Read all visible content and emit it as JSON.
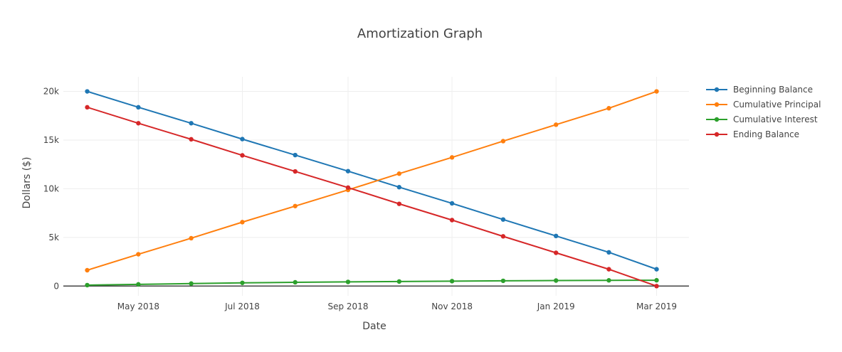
{
  "chart_data": {
    "type": "line",
    "title": "Amortization Graph",
    "xlabel": "Date",
    "ylabel": "Dollars ($)",
    "x": [
      "2018-04-01",
      "2018-05-01",
      "2018-06-01",
      "2018-07-01",
      "2018-08-01",
      "2018-09-01",
      "2018-10-01",
      "2018-11-01",
      "2018-12-01",
      "2019-01-01",
      "2019-02-01",
      "2019-03-01"
    ],
    "xlim": [
      "2018-03-18",
      "2019-03-20"
    ],
    "ylim": [
      -1000,
      21500
    ],
    "x_ticks": [
      {
        "date": "2018-05-01",
        "label": "May 2018"
      },
      {
        "date": "2018-07-01",
        "label": "Jul 2018"
      },
      {
        "date": "2018-09-01",
        "label": "Sep 2018"
      },
      {
        "date": "2018-11-01",
        "label": "Nov 2018"
      },
      {
        "date": "2019-01-01",
        "label": "Jan 2019"
      },
      {
        "date": "2019-03-01",
        "label": "Mar 2019"
      }
    ],
    "y_ticks": [
      {
        "value": 0,
        "label": "0"
      },
      {
        "value": 5000,
        "label": "5k"
      },
      {
        "value": 10000,
        "label": "10k"
      },
      {
        "value": 15000,
        "label": "15k"
      },
      {
        "value": 20000,
        "label": "20k"
      }
    ],
    "grid": true,
    "legend_position": "top-right",
    "series": [
      {
        "name": "Beginning Balance",
        "color": "#1f77b4",
        "values": [
          20000,
          18370,
          16730,
          15100,
          13460,
          11810,
          10160,
          8500,
          6840,
          5150,
          3470,
          1730
        ]
      },
      {
        "name": "Cumulative Principal",
        "color": "#ff7f0e",
        "values": [
          1630,
          3270,
          4920,
          6570,
          8220,
          9880,
          11550,
          13220,
          14890,
          16580,
          18270,
          20000
        ]
      },
      {
        "name": "Cumulative Interest",
        "color": "#2ca02c",
        "values": [
          100,
          180,
          260,
          330,
          390,
          430,
          470,
          510,
          540,
          570,
          590,
          600
        ]
      },
      {
        "name": "Ending Balance",
        "color": "#d62728",
        "values": [
          18370,
          16730,
          15080,
          13430,
          11780,
          10120,
          8450,
          6780,
          5110,
          3420,
          1730,
          0
        ]
      }
    ]
  }
}
